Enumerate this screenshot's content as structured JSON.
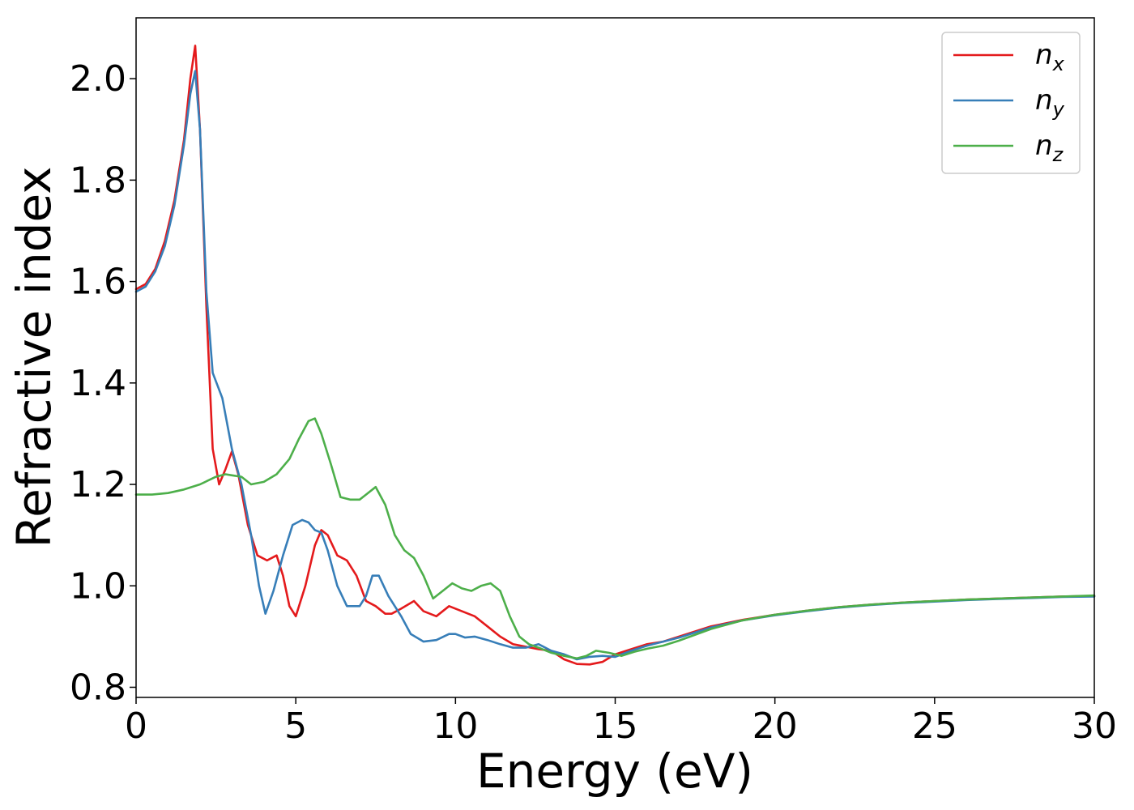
{
  "chart_data": {
    "type": "line",
    "xlabel": "Energy (eV)",
    "ylabel": "Refractive index",
    "xlim": [
      0,
      30
    ],
    "ylim": [
      0.78,
      2.12
    ],
    "xticks": [
      0,
      5,
      10,
      15,
      20,
      25,
      30
    ],
    "xtick_labels": [
      "0",
      "5",
      "10",
      "15",
      "20",
      "25",
      "30"
    ],
    "yticks": [
      0.8,
      1.0,
      1.2,
      1.4,
      1.6,
      1.8,
      2.0
    ],
    "ytick_labels": [
      "0.8",
      "1.0",
      "1.2",
      "1.4",
      "1.6",
      "1.8",
      "2.0"
    ],
    "grid": false,
    "legend_position": "top-right",
    "series": [
      {
        "name": "n_x",
        "legend_base": "n",
        "legend_sub": "x",
        "color": "#e41a1c",
        "x": [
          0,
          0.3,
          0.6,
          0.9,
          1.2,
          1.5,
          1.7,
          1.85,
          2.0,
          2.2,
          2.4,
          2.6,
          2.8,
          3.0,
          3.2,
          3.5,
          3.8,
          4.1,
          4.4,
          4.6,
          4.8,
          5.0,
          5.3,
          5.6,
          5.8,
          6.0,
          6.3,
          6.6,
          6.9,
          7.2,
          7.5,
          7.8,
          8.0,
          8.3,
          8.7,
          9.0,
          9.4,
          9.8,
          10.2,
          10.6,
          11.0,
          11.4,
          11.8,
          12.2,
          12.6,
          13.0,
          13.4,
          13.8,
          14.2,
          14.6,
          15.0,
          15.5,
          16.0,
          16.5,
          17.0,
          18.0,
          19.0,
          20.0,
          21.0,
          22.0,
          23.0,
          24.0,
          25.0,
          26.0,
          27.0,
          28.0,
          29.0,
          30.0
        ],
        "values": [
          1.585,
          1.595,
          1.625,
          1.68,
          1.76,
          1.88,
          2.0,
          2.065,
          1.9,
          1.55,
          1.27,
          1.2,
          1.23,
          1.265,
          1.22,
          1.12,
          1.06,
          1.05,
          1.06,
          1.02,
          0.96,
          0.94,
          1.0,
          1.08,
          1.11,
          1.1,
          1.06,
          1.05,
          1.02,
          0.97,
          0.96,
          0.945,
          0.945,
          0.955,
          0.97,
          0.95,
          0.94,
          0.96,
          0.95,
          0.94,
          0.92,
          0.9,
          0.885,
          0.88,
          0.875,
          0.872,
          0.855,
          0.846,
          0.845,
          0.85,
          0.865,
          0.875,
          0.885,
          0.89,
          0.9,
          0.92,
          0.933,
          0.943,
          0.951,
          0.958,
          0.963,
          0.967,
          0.97,
          0.973,
          0.975,
          0.977,
          0.979,
          0.98
        ]
      },
      {
        "name": "n_y",
        "legend_base": "n",
        "legend_sub": "y",
        "color": "#377eb8",
        "x": [
          0,
          0.3,
          0.6,
          0.9,
          1.2,
          1.5,
          1.7,
          1.85,
          2.0,
          2.2,
          2.4,
          2.7,
          3.0,
          3.3,
          3.6,
          3.85,
          4.05,
          4.3,
          4.6,
          4.9,
          5.2,
          5.4,
          5.6,
          5.8,
          6.0,
          6.3,
          6.6,
          7.0,
          7.2,
          7.4,
          7.6,
          7.9,
          8.3,
          8.6,
          9.0,
          9.4,
          9.8,
          10.0,
          10.3,
          10.6,
          11.0,
          11.4,
          11.8,
          12.2,
          12.6,
          13.0,
          13.4,
          13.8,
          14.2,
          14.6,
          15.0,
          15.5,
          16.0,
          16.5,
          17.0,
          18.0,
          19.0,
          20.0,
          21.0,
          22.0,
          23.0,
          24.0,
          25.0,
          26.0,
          27.0,
          28.0,
          29.0,
          30.0
        ],
        "values": [
          1.58,
          1.59,
          1.62,
          1.67,
          1.75,
          1.87,
          1.97,
          2.015,
          1.9,
          1.58,
          1.42,
          1.37,
          1.27,
          1.2,
          1.1,
          1.0,
          0.945,
          0.99,
          1.06,
          1.12,
          1.13,
          1.125,
          1.11,
          1.105,
          1.07,
          1.0,
          0.96,
          0.96,
          0.98,
          1.02,
          1.02,
          0.98,
          0.94,
          0.905,
          0.89,
          0.893,
          0.905,
          0.905,
          0.898,
          0.9,
          0.893,
          0.885,
          0.878,
          0.878,
          0.885,
          0.872,
          0.865,
          0.855,
          0.86,
          0.862,
          0.86,
          0.872,
          0.882,
          0.89,
          0.898,
          0.918,
          0.932,
          0.942,
          0.95,
          0.957,
          0.962,
          0.966,
          0.969,
          0.972,
          0.974,
          0.976,
          0.978,
          0.979
        ]
      },
      {
        "name": "n_z",
        "legend_base": "n",
        "legend_sub": "z",
        "color": "#4daf4a",
        "x": [
          0,
          0.5,
          1.0,
          1.5,
          2.0,
          2.5,
          2.8,
          3.0,
          3.3,
          3.6,
          4.0,
          4.4,
          4.8,
          5.1,
          5.4,
          5.6,
          5.8,
          6.1,
          6.4,
          6.7,
          7.0,
          7.2,
          7.5,
          7.8,
          8.1,
          8.4,
          8.7,
          9.0,
          9.3,
          9.6,
          9.9,
          10.2,
          10.5,
          10.8,
          11.1,
          11.4,
          11.7,
          12.0,
          12.3,
          12.6,
          13.0,
          13.4,
          13.8,
          14.1,
          14.4,
          14.8,
          15.2,
          15.6,
          16.0,
          16.5,
          17.0,
          18.0,
          19.0,
          20.0,
          21.0,
          22.0,
          23.0,
          24.0,
          25.0,
          26.0,
          27.0,
          28.0,
          29.0,
          30.0
        ],
        "values": [
          1.18,
          1.18,
          1.183,
          1.19,
          1.2,
          1.215,
          1.22,
          1.218,
          1.215,
          1.2,
          1.205,
          1.22,
          1.25,
          1.29,
          1.325,
          1.33,
          1.3,
          1.24,
          1.175,
          1.17,
          1.17,
          1.18,
          1.195,
          1.16,
          1.1,
          1.07,
          1.055,
          1.02,
          0.975,
          0.99,
          1.005,
          0.995,
          0.99,
          1.0,
          1.005,
          0.99,
          0.94,
          0.9,
          0.885,
          0.878,
          0.868,
          0.862,
          0.857,
          0.862,
          0.872,
          0.868,
          0.862,
          0.87,
          0.876,
          0.882,
          0.892,
          0.915,
          0.932,
          0.943,
          0.951,
          0.958,
          0.963,
          0.967,
          0.97,
          0.973,
          0.975,
          0.977,
          0.979,
          0.981
        ]
      }
    ]
  }
}
